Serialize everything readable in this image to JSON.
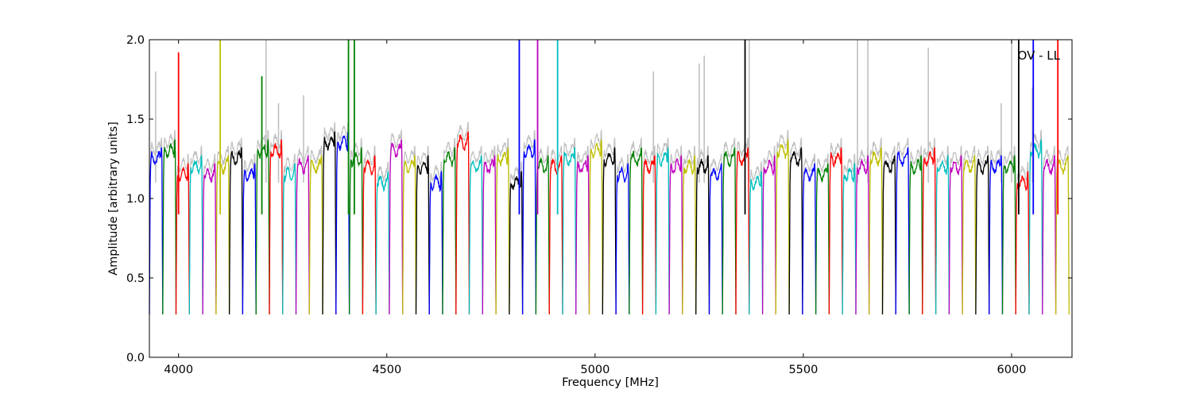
{
  "chart_data": {
    "type": "line",
    "title": "",
    "annotation": "OV - LL",
    "xlabel": "Frequency [MHz]",
    "ylabel": "Amplitude [arbitrary units]",
    "xlim": [
      3930,
      6145
    ],
    "ylim": [
      0.0,
      2.0
    ],
    "xticks": [
      4000,
      4500,
      5000,
      5500,
      6000
    ],
    "xtick_labels": [
      "4000",
      "4500",
      "5000",
      "5500",
      "6000"
    ],
    "yticks": [
      0.0,
      0.5,
      1.0,
      1.5,
      2.0
    ],
    "ytick_labels": [
      "0.0",
      "0.5",
      "1.0",
      "1.5",
      "2.0"
    ],
    "grid": false,
    "legend": "none",
    "background_series_color": "#c0c0c0",
    "channel_width_mhz": 32,
    "channel_start_mhz": 3930,
    "channel_count": 69,
    "color_cycle": [
      "#0000ff",
      "#008000",
      "#ff0000",
      "#00bfbf",
      "#bf00bf",
      "#bfbf00",
      "#000000"
    ],
    "channel_levels": [
      1.25,
      1.3,
      1.15,
      1.2,
      1.15,
      1.2,
      1.25,
      1.15,
      1.3,
      1.3,
      1.15,
      1.2,
      1.2,
      1.35,
      1.35,
      1.25,
      1.2,
      1.1,
      1.3,
      1.2,
      1.2,
      1.1,
      1.25,
      1.35,
      1.2,
      1.2,
      1.25,
      1.1,
      1.3,
      1.2,
      1.2,
      1.25,
      1.2,
      1.3,
      1.25,
      1.15,
      1.25,
      1.2,
      1.25,
      1.2,
      1.2,
      1.2,
      1.15,
      1.25,
      1.25,
      1.1,
      1.2,
      1.3,
      1.25,
      1.15,
      1.15,
      1.25,
      1.15,
      1.2,
      1.25,
      1.2,
      1.25,
      1.2,
      1.25,
      1.2,
      1.2,
      1.2,
      1.2,
      1.2,
      1.2,
      1.1,
      1.3,
      1.2,
      1.2
    ],
    "spikes": [
      {
        "x": 4000,
        "y": 1.92,
        "color": "#ff0000"
      },
      {
        "x": 4100,
        "y": 2.0,
        "color": "#bfbf00"
      },
      {
        "x": 4200,
        "y": 1.77,
        "color": "#008000"
      },
      {
        "x": 4408,
        "y": 2.0,
        "color": "#008000"
      },
      {
        "x": 4422,
        "y": 2.0,
        "color": "#008000"
      },
      {
        "x": 4818,
        "y": 2.0,
        "color": "#0000ff"
      },
      {
        "x": 4862,
        "y": 2.0,
        "color": "#bf00bf"
      },
      {
        "x": 4910,
        "y": 2.0,
        "color": "#00bfbf"
      },
      {
        "x": 5360,
        "y": 2.0,
        "color": "#000000"
      },
      {
        "x": 6017,
        "y": 2.0,
        "color": "#000000"
      },
      {
        "x": 6052,
        "y": 2.0,
        "color": "#0000ff"
      },
      {
        "x": 6111,
        "y": 2.0,
        "color": "#ff0000"
      }
    ],
    "background_spikes": [
      {
        "x": 3945,
        "y": 1.8
      },
      {
        "x": 4210,
        "y": 2.0
      },
      {
        "x": 4240,
        "y": 1.6
      },
      {
        "x": 4300,
        "y": 1.65
      },
      {
        "x": 5140,
        "y": 1.8
      },
      {
        "x": 5250,
        "y": 1.85
      },
      {
        "x": 5262,
        "y": 1.9
      },
      {
        "x": 5370,
        "y": 2.0
      },
      {
        "x": 5630,
        "y": 2.0
      },
      {
        "x": 5655,
        "y": 2.0
      },
      {
        "x": 5800,
        "y": 1.95
      },
      {
        "x": 5975,
        "y": 1.6
      },
      {
        "x": 6000,
        "y": 2.0
      },
      {
        "x": 6050,
        "y": 1.7
      }
    ]
  }
}
